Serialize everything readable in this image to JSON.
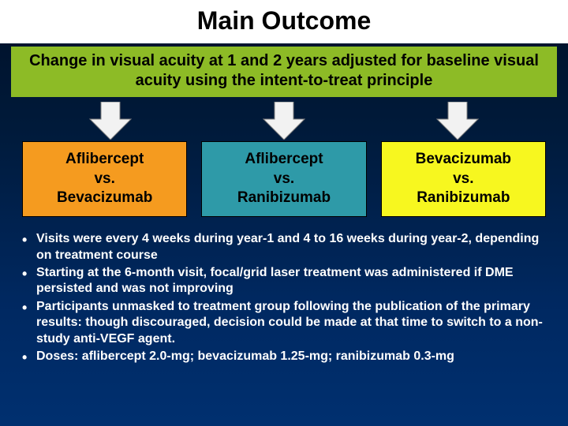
{
  "title": "Main Outcome",
  "subtitle_box": {
    "text": "Change in visual acuity at 1 and 2 years adjusted for baseline visual acuity using the intent-to-treat principle",
    "background_color": "#8dbb26"
  },
  "arrows": {
    "fill": "#f2f2f2",
    "stroke": "#7f7f7f"
  },
  "compare_boxes": [
    {
      "line1": "Aflibercept",
      "line2": "vs.",
      "line3": "Bevacizumab",
      "bg": "#f59b1f"
    },
    {
      "line1": "Aflibercept",
      "line2": "vs.",
      "line3": "Ranibizumab",
      "bg": "#2e9aa8"
    },
    {
      "line1": "Bevacizumab",
      "line2": "vs.",
      "line3": "Ranibizumab",
      "bg": "#f7f71f"
    }
  ],
  "bullets": [
    "Visits were every 4 weeks during year-1 and 4 to 16 weeks during year-2, depending on treatment course",
    "Starting at the 6-month visit, focal/grid laser treatment was administered if DME persisted and was not improving",
    "Participants unmasked to treatment group following the publication of the primary results: though discouraged, decision could be made at that time to switch to a non-study anti-VEGF agent.",
    "Doses: aflibercept 2.0-mg; bevacizumab 1.25-mg; ranibizumab 0.3-mg"
  ]
}
